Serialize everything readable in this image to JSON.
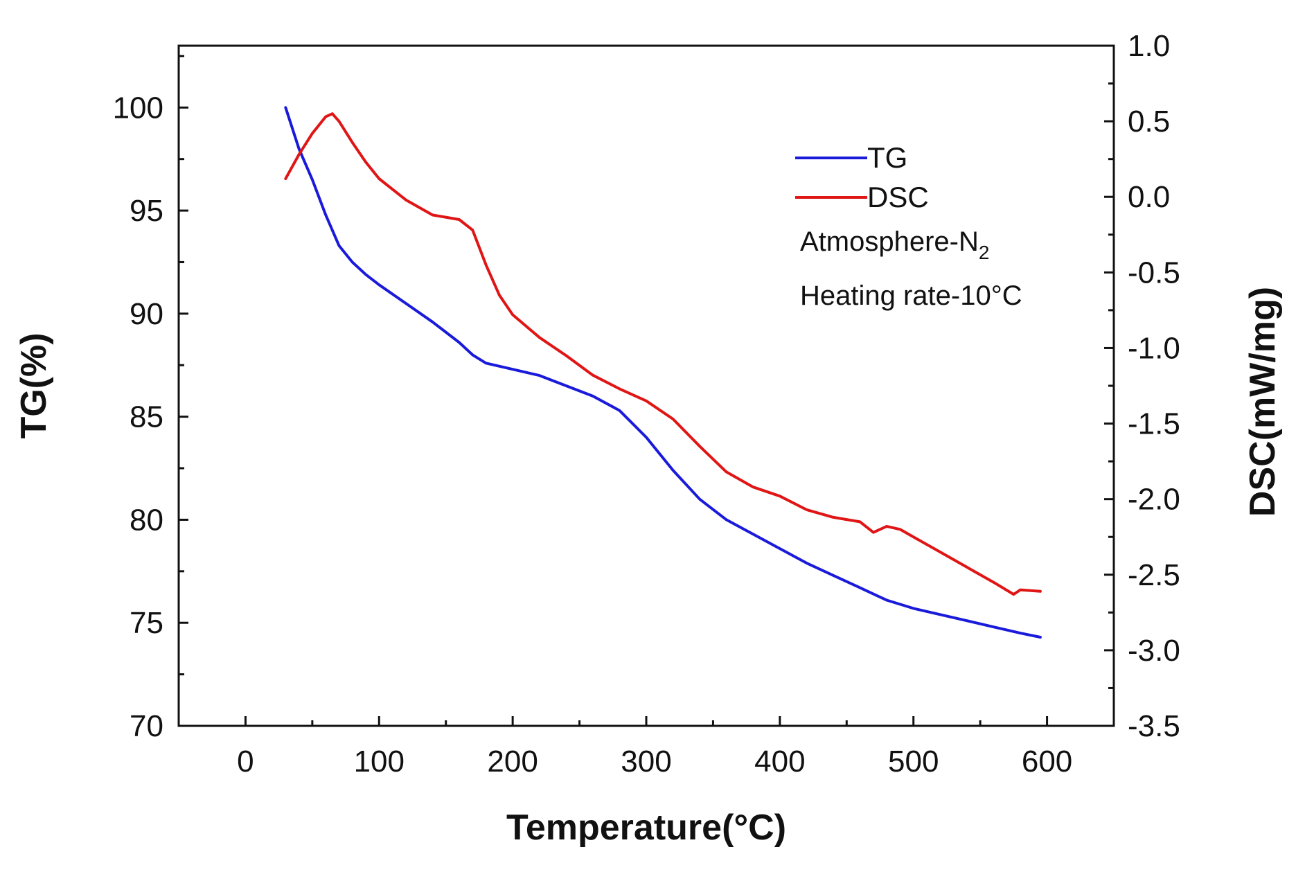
{
  "chart_data": {
    "type": "line",
    "xlabel": "Temperature(°C)",
    "ylabel_left": "TG(%)",
    "ylabel_right": "DSC(mW/mg)",
    "xlim": [
      -50,
      650
    ],
    "ylim_left": [
      70,
      103
    ],
    "ylim_right": [
      -3.5,
      1.0
    ],
    "x_ticks": [
      0,
      100,
      200,
      300,
      400,
      500,
      600
    ],
    "x_tick_labels": [
      "0",
      "100",
      "200",
      "300",
      "400",
      "500",
      "600"
    ],
    "y_left_ticks": [
      70,
      75,
      80,
      85,
      90,
      95,
      100
    ],
    "y_left_tick_labels": [
      "70",
      "75",
      "80",
      "85",
      "90",
      "95",
      "100"
    ],
    "y_right_ticks": [
      1.0,
      0.5,
      0.0,
      -0.5,
      -1.0,
      -1.5,
      -2.0,
      -2.5,
      -3.0,
      -3.5
    ],
    "y_right_tick_labels": [
      "1.0",
      "0.5",
      "0.0",
      "-0.5",
      "-1.0",
      "-1.5",
      "-2.0",
      "-2.5",
      "-3.0",
      "-3.5"
    ],
    "legend_position": "top-right",
    "annotations": {
      "atmosphere_prefix": "Atmosphere-N",
      "atmosphere_subscript": "2",
      "heating_rate": "Heating rate-10°C"
    },
    "series": [
      {
        "name": "TG",
        "axis": "left",
        "color": "#1a1adb",
        "x": [
          30,
          40,
          50,
          60,
          70,
          80,
          90,
          100,
          120,
          140,
          160,
          170,
          180,
          200,
          220,
          240,
          260,
          280,
          300,
          320,
          340,
          360,
          380,
          400,
          420,
          440,
          460,
          480,
          500,
          520,
          540,
          560,
          580,
          595
        ],
        "y": [
          100.0,
          98.0,
          96.5,
          94.8,
          93.3,
          92.5,
          91.9,
          91.4,
          90.5,
          89.6,
          88.6,
          88.0,
          87.6,
          87.3,
          87.0,
          86.5,
          86.0,
          85.3,
          84.0,
          82.4,
          81.0,
          80.0,
          79.3,
          78.6,
          77.9,
          77.3,
          76.7,
          76.1,
          75.7,
          75.4,
          75.1,
          74.8,
          74.5,
          74.3
        ]
      },
      {
        "name": "DSC",
        "axis": "right",
        "color": "#e01515",
        "x": [
          30,
          40,
          50,
          60,
          65,
          70,
          80,
          90,
          100,
          120,
          140,
          160,
          170,
          180,
          190,
          200,
          220,
          240,
          260,
          280,
          300,
          320,
          340,
          360,
          380,
          400,
          420,
          440,
          460,
          470,
          480,
          490,
          500,
          520,
          540,
          560,
          575,
          580,
          595
        ],
        "y": [
          0.12,
          0.28,
          0.42,
          0.53,
          0.55,
          0.5,
          0.36,
          0.23,
          0.12,
          -0.02,
          -0.12,
          -0.15,
          -0.22,
          -0.45,
          -0.65,
          -0.78,
          -0.93,
          -1.05,
          -1.18,
          -1.27,
          -1.35,
          -1.47,
          -1.65,
          -1.82,
          -1.92,
          -1.98,
          -2.07,
          -2.12,
          -2.15,
          -2.22,
          -2.18,
          -2.2,
          -2.25,
          -2.35,
          -2.45,
          -2.55,
          -2.63,
          -2.6,
          -2.61
        ]
      }
    ]
  }
}
